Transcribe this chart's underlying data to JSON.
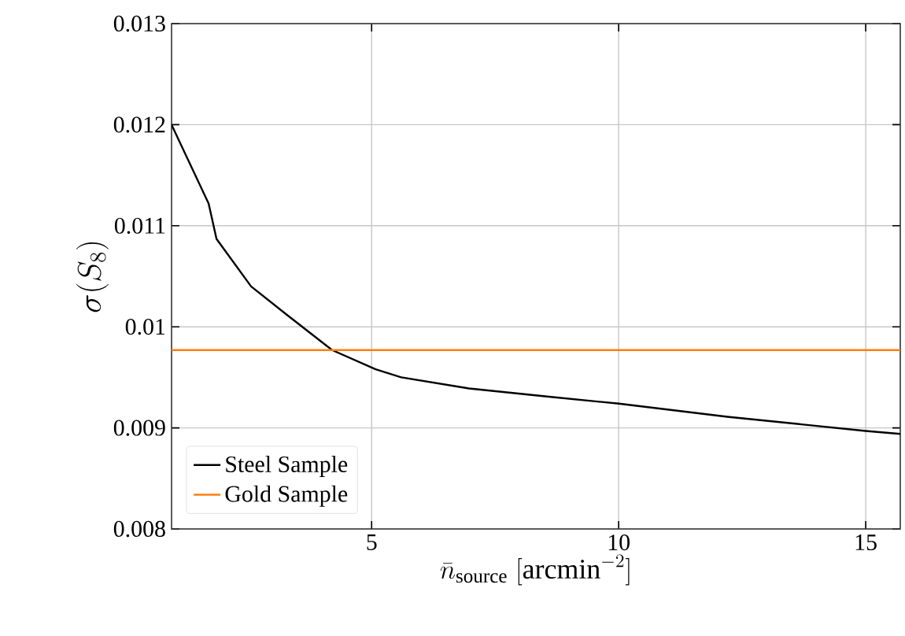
{
  "chart_data": {
    "type": "line",
    "xlabel": "\\bar{n}_{\\mathrm{source}}\\;[\\mathrm{arcmin}^{-2}]",
    "ylabel": "\\sigma(S_8)",
    "series": [
      {
        "name": "Steel Sample",
        "color": "#000000",
        "x": [
          0.95,
          1.7,
          1.86,
          2.56,
          3.28,
          4.2,
          5.08,
          5.6,
          6.97,
          8.55,
          10,
          12.2,
          15,
          15.7
        ],
        "values": [
          0.012,
          0.01122,
          0.01087,
          0.0104,
          0.01012,
          0.00977,
          0.00958,
          0.0095,
          0.00939,
          0.00931,
          0.00924,
          0.00911,
          0.00897,
          0.00894
        ]
      },
      {
        "name": "Gold Sample",
        "color": "#ff7f0e",
        "x": [
          0.95,
          15.7
        ],
        "values": [
          0.00977,
          0.00977
        ]
      }
    ],
    "xlim": [
      0.95,
      15.7
    ],
    "ylim": [
      0.008,
      0.013
    ],
    "xticks": [
      5,
      10,
      15
    ],
    "yticks": [
      0.008,
      0.009,
      0.01,
      0.011,
      0.012,
      0.013
    ],
    "grid": true,
    "legend": "bottom left",
    "marker": "none",
    "line_style": "solid"
  }
}
